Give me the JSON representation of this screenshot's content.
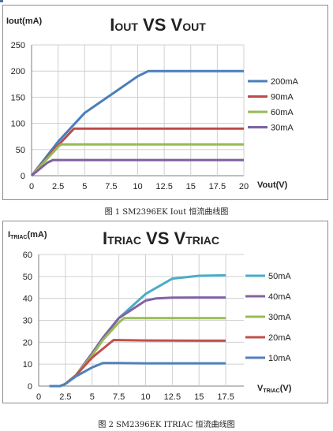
{
  "charts": [
    {
      "title_main": "I",
      "title_sub1": "OUT",
      "title_mid": " VS V",
      "title_sub2": "OUT",
      "ylabel": "Iout(mA)",
      "xlabel": "Vout(V)",
      "caption": "图 1 SM2396EK Iout 恒流曲线图"
    },
    {
      "title_main": "I",
      "title_sub1": "TRIAC",
      "title_mid": " VS V",
      "title_sub2": "TRIAC",
      "ylabel_main": "I",
      "ylabel_sub": "TRIAC",
      "ylabel_unit": "(mA)",
      "xlabel_main": "V",
      "xlabel_sub": "TRIAC",
      "xlabel_unit": "(V)",
      "caption": "图 2 SM2396EK ITRIAC 恒流曲线图"
    }
  ],
  "chart_data": [
    {
      "type": "line",
      "xlim": [
        0,
        20
      ],
      "ylim": [
        0,
        250
      ],
      "xticks": [
        "0",
        "2.5",
        "5",
        "7.5",
        "10",
        "12.5",
        "15",
        "17.5",
        "20"
      ],
      "yticks": [
        "0",
        "50",
        "100",
        "150",
        "200",
        "250"
      ],
      "grid": true,
      "legend_position": "right",
      "series": [
        {
          "name": "200mA",
          "color": "#4a7ebb",
          "x": [
            0,
            2.5,
            5,
            7.5,
            10,
            11,
            12,
            15,
            17.5,
            20
          ],
          "y": [
            0,
            65,
            120,
            155,
            190,
            200,
            200,
            200,
            200,
            200
          ]
        },
        {
          "name": "90mA",
          "color": "#be4b48",
          "x": [
            0,
            2.5,
            4,
            5,
            7.5,
            10,
            20
          ],
          "y": [
            0,
            58,
            90,
            90,
            90,
            90,
            90
          ]
        },
        {
          "name": "60mA",
          "color": "#98b954",
          "x": [
            0,
            2.5,
            2.8,
            5,
            20
          ],
          "y": [
            0,
            55,
            60,
            60,
            60
          ]
        },
        {
          "name": "30mA",
          "color": "#7d60a0",
          "x": [
            0,
            1.5,
            2,
            5,
            20
          ],
          "y": [
            0,
            25,
            30,
            30,
            30
          ]
        }
      ]
    },
    {
      "type": "line",
      "xlim": [
        0,
        20
      ],
      "ylim": [
        0,
        60
      ],
      "xticks": [
        "0",
        "2.5",
        "5",
        "7.5",
        "10",
        "12.5",
        "15",
        "17.5"
      ],
      "yticks": [
        "0",
        "10",
        "20",
        "30",
        "40",
        "50",
        "60"
      ],
      "grid": true,
      "legend_position": "right",
      "series": [
        {
          "name": "50mA",
          "color": "#4bacc6",
          "x": [
            1,
            2,
            2.5,
            3.5,
            5,
            6,
            7.5,
            10,
            12.5,
            15,
            17.5
          ],
          "y": [
            0,
            0,
            1,
            5,
            15,
            22,
            31,
            42,
            49,
            50.3,
            50.5
          ]
        },
        {
          "name": "40mA",
          "color": "#8064a2",
          "x": [
            1,
            2,
            2.5,
            3.5,
            5,
            6,
            7.5,
            10,
            11,
            12.5,
            15,
            17.5
          ],
          "y": [
            0,
            0,
            1,
            5,
            15,
            22,
            31,
            39,
            40,
            40.3,
            40.4,
            40.4
          ]
        },
        {
          "name": "30mA",
          "color": "#9bbb59",
          "x": [
            1,
            2,
            2.5,
            3.5,
            5,
            6,
            7.5,
            8,
            10,
            15,
            17.5
          ],
          "y": [
            0,
            0,
            1,
            5,
            14,
            21,
            29,
            31,
            31,
            31,
            31
          ]
        },
        {
          "name": "20mA",
          "color": "#c0504d",
          "x": [
            1,
            2,
            2.5,
            3.5,
            5,
            6.5,
            7,
            7.5,
            10,
            15,
            17.5
          ],
          "y": [
            0,
            0,
            1,
            5,
            13,
            19,
            21,
            21,
            20.8,
            20.7,
            20.7
          ]
        },
        {
          "name": "10mA",
          "color": "#4f81bd",
          "x": [
            1,
            2,
            2.5,
            3.5,
            5,
            6,
            7.5,
            10,
            15,
            17.5
          ],
          "y": [
            0,
            0,
            1,
            4.5,
            8.5,
            10.5,
            10.5,
            10.4,
            10.4,
            10.4
          ]
        }
      ]
    }
  ]
}
